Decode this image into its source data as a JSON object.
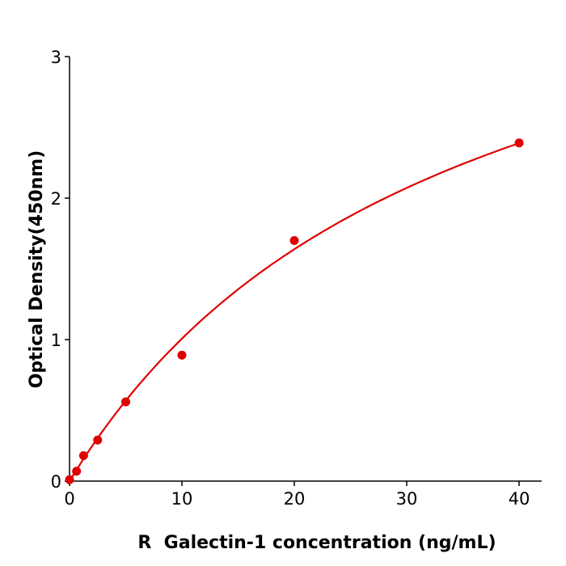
{
  "chart_data": {
    "type": "scatter",
    "title": "",
    "xlabel": "R  Galectin-1 concentration (ng/mL)",
    "ylabel": "Optical Density(450nm)",
    "xlim": [
      0,
      42
    ],
    "ylim": [
      0,
      3
    ],
    "xticks": [
      "0",
      "10",
      "20",
      "30",
      "40"
    ],
    "yticks": [
      "0",
      "1",
      "2",
      "3"
    ],
    "grid": false,
    "legend": "none",
    "color": "#e00000",
    "points": [
      {
        "x": 0,
        "y": 0.01
      },
      {
        "x": 0.625,
        "y": 0.07
      },
      {
        "x": 1.25,
        "y": 0.18
      },
      {
        "x": 2.5,
        "y": 0.29
      },
      {
        "x": 5,
        "y": 0.56
      },
      {
        "x": 10,
        "y": 0.89
      },
      {
        "x": 20,
        "y": 1.7
      },
      {
        "x": 40,
        "y": 2.39
      }
    ],
    "fit_curve": true
  }
}
